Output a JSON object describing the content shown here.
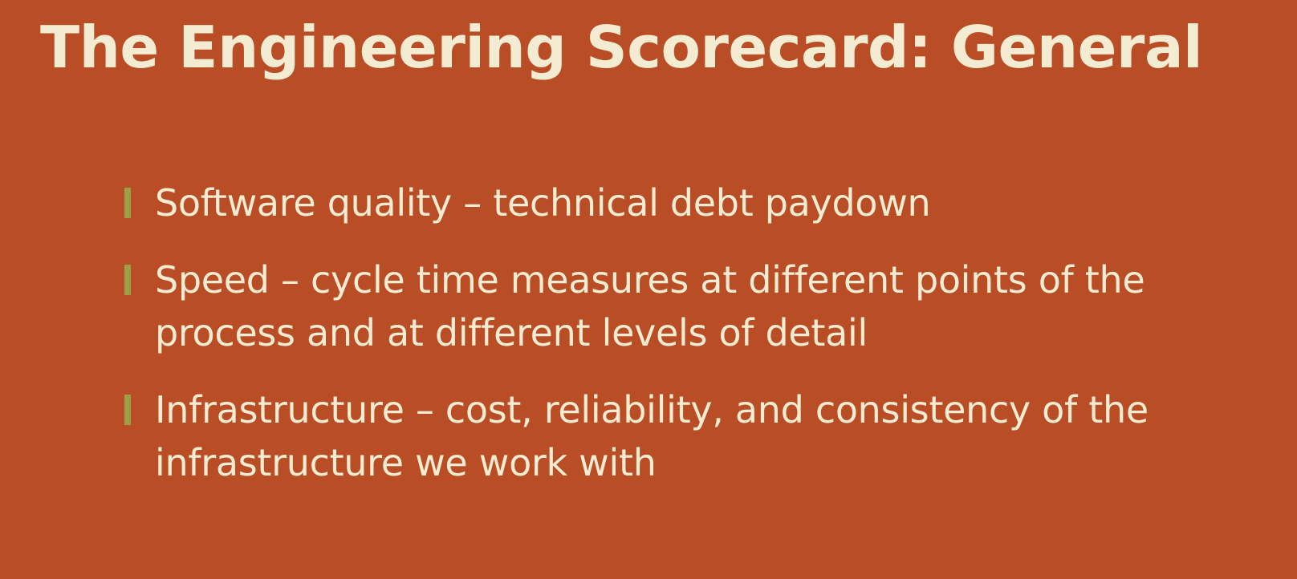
{
  "slide": {
    "title": "The Engineering Scorecard: General",
    "bullets": [
      {
        "text": "Software quality – technical debt paydown"
      },
      {
        "text": "Speed – cycle time measures at different points of the process and at different levels of detail"
      },
      {
        "text": "Infrastructure – cost, reliability, and consistency of the infrastructure we work with"
      }
    ]
  },
  "colors": {
    "background": "#b94e26",
    "text": "#f4ecd2",
    "bullet_marker": "#9aa045"
  }
}
